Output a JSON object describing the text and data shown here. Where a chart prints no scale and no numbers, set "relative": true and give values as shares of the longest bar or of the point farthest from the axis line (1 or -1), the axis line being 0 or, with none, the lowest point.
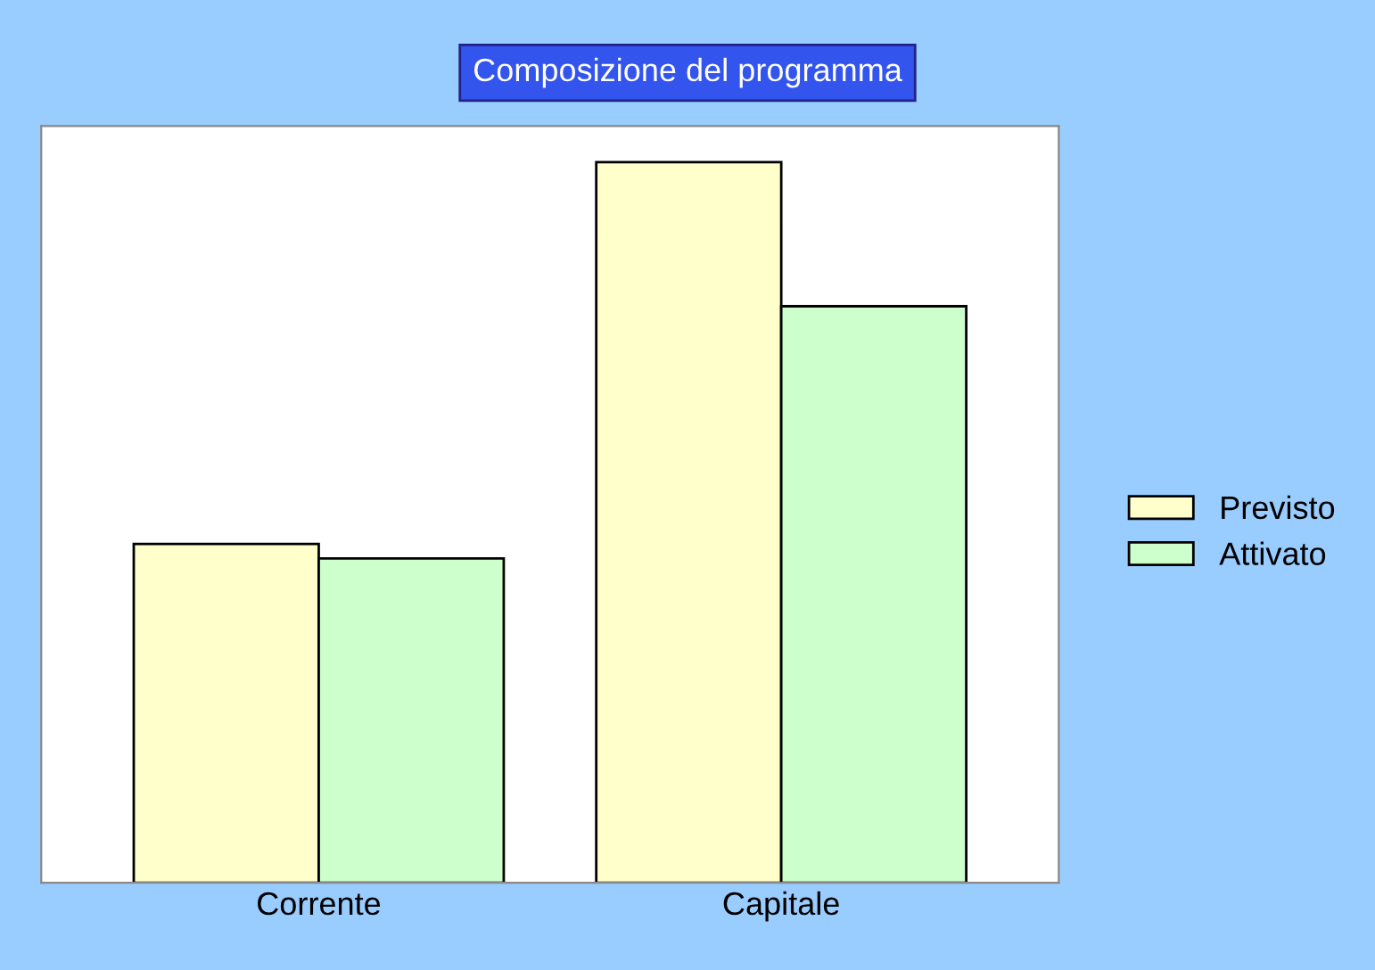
{
  "chart_data": {
    "type": "bar",
    "title": "Composizione del programma",
    "relative": true,
    "categories": [
      "Corrente",
      "Capitale"
    ],
    "series": [
      {
        "name": "Previsto",
        "color": "#ffffcc",
        "values": [
          0.47,
          1
        ]
      },
      {
        "name": "Attivato",
        "color": "#ccffcc",
        "values": [
          0.45,
          0.8
        ]
      }
    ],
    "legend": "right"
  }
}
